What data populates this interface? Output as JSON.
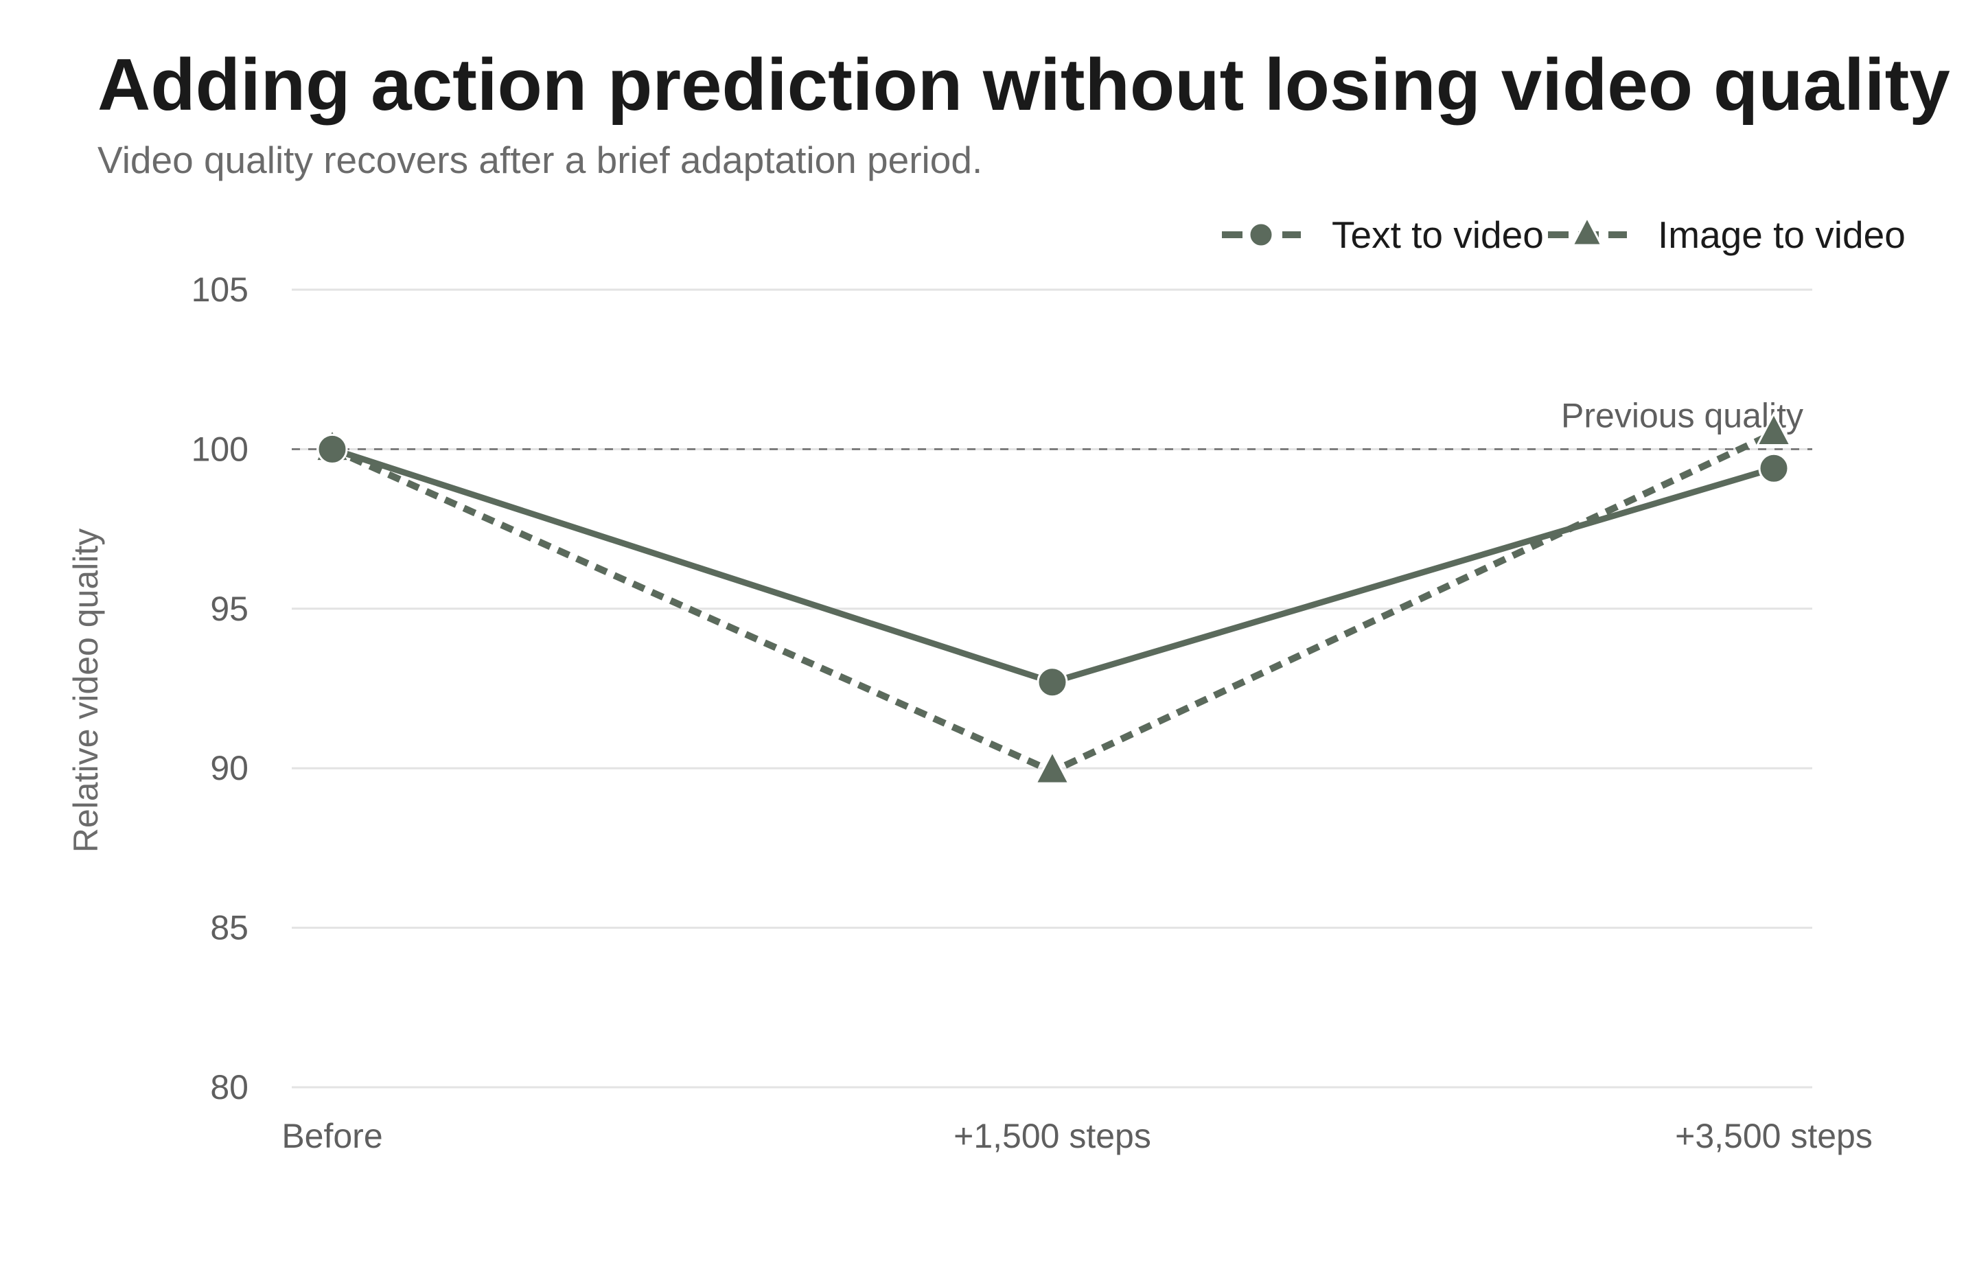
{
  "chart_data": {
    "type": "line",
    "title": "Adding action prediction without losing video quality",
    "subtitle": "Video quality recovers after a brief adaptation period.",
    "xlabel": "",
    "ylabel": "Relative video quality",
    "categories": [
      "Before",
      "+1,500 steps",
      "+3,500 steps"
    ],
    "ylim": [
      80,
      105
    ],
    "yticks": [
      80,
      85,
      90,
      95,
      100,
      105
    ],
    "grid": true,
    "legend_position": "top-right",
    "series": [
      {
        "name": "Text to video",
        "values": [
          100,
          92.7,
          99.4
        ],
        "marker": "circle",
        "line_style": "solid",
        "color": "#5b6a5c"
      },
      {
        "name": "Image to video",
        "values": [
          100,
          89.9,
          100.5
        ],
        "marker": "triangle",
        "line_style": "dotted",
        "color": "#5b6a5c"
      }
    ],
    "reference_line": {
      "value": 100,
      "label": "Previous quality"
    }
  }
}
